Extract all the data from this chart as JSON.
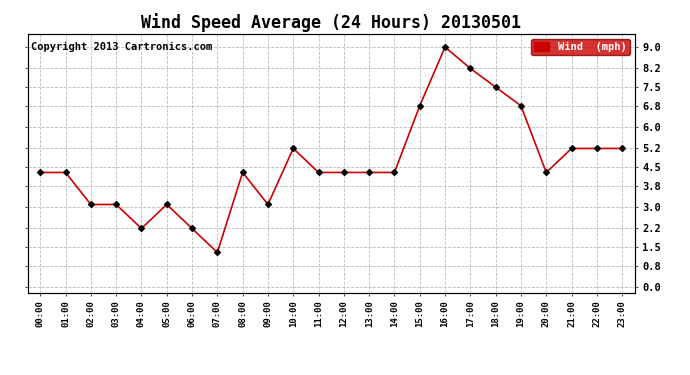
{
  "title": "Wind Speed Average (24 Hours) 20130501",
  "copyright_text": "Copyright 2013 Cartronics.com",
  "legend_label": "Wind  (mph)",
  "hours": [
    "00:00",
    "01:00",
    "02:00",
    "03:00",
    "04:00",
    "05:00",
    "06:00",
    "07:00",
    "08:00",
    "09:00",
    "10:00",
    "11:00",
    "12:00",
    "13:00",
    "14:00",
    "15:00",
    "16:00",
    "17:00",
    "18:00",
    "19:00",
    "20:00",
    "21:00",
    "22:00",
    "23:00"
  ],
  "values": [
    4.3,
    4.3,
    3.1,
    3.1,
    2.2,
    3.1,
    2.2,
    1.3,
    4.3,
    3.1,
    5.2,
    4.3,
    4.3,
    4.3,
    4.3,
    6.8,
    9.0,
    8.2,
    7.5,
    6.8,
    4.3,
    5.2,
    5.2,
    5.2
  ],
  "line_color": "#cc0000",
  "marker_color": "#000000",
  "background_color": "#ffffff",
  "grid_color": "#bbbbbb",
  "title_fontsize": 12,
  "copyright_fontsize": 7.5,
  "yticks": [
    0.0,
    0.8,
    1.5,
    2.2,
    3.0,
    3.8,
    4.5,
    5.2,
    6.0,
    6.8,
    7.5,
    8.2,
    9.0
  ],
  "ylim": [
    -0.2,
    9.5
  ],
  "legend_bg": "#cc0000",
  "legend_text_color": "#ffffff"
}
